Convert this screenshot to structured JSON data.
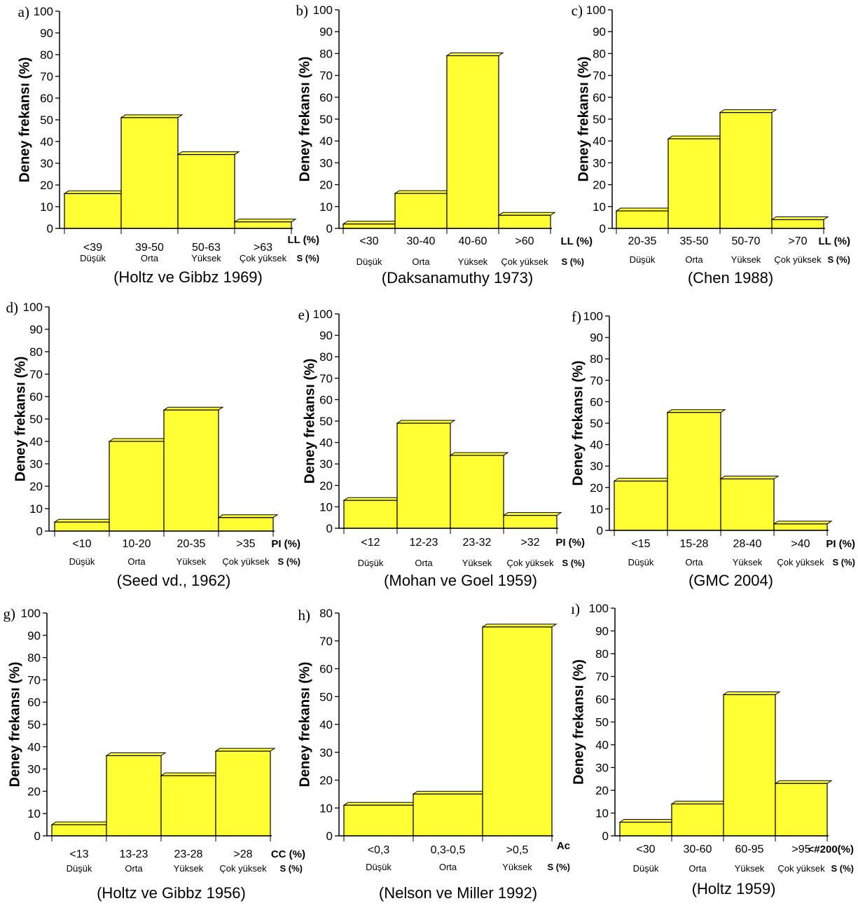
{
  "charts": [
    {
      "letter": "a)",
      "ylabel": "Deney frekansı (%)",
      "ylim": [
        0,
        100
      ],
      "yticks": [
        0,
        10,
        20,
        30,
        40,
        50,
        60,
        70,
        80,
        90,
        100
      ],
      "categories": [
        "<39",
        "39-50",
        "50-63",
        ">63"
      ],
      "classes": [
        "Düşük",
        "Orta",
        "Yüksek",
        "Çok yüksek"
      ],
      "values": [
        16,
        51,
        34,
        3
      ],
      "unit_cat": "LL (%)",
      "unit_cls": "S (%)",
      "source": "(Holtz ve Gibbz 1969)",
      "color": "#ffff33"
    },
    {
      "letter": "b)",
      "ylabel": "Deney frekansı (%)",
      "ylim": [
        0,
        100
      ],
      "yticks": [
        0,
        10,
        20,
        30,
        40,
        50,
        60,
        70,
        80,
        90,
        100
      ],
      "categories": [
        "<30",
        "30-40",
        "40-60",
        ">60"
      ],
      "classes": [
        "Düşük",
        "Orta",
        "Yüksek",
        "Çok yüksek"
      ],
      "values": [
        2,
        16,
        79,
        6
      ],
      "unit_cat": "LL (%)",
      "unit_cls": "S (%)",
      "source": "(Daksanamuthy 1973)",
      "color": "#ffff33"
    },
    {
      "letter": "c)",
      "ylabel": "Deney frekansı (%)",
      "ylim": [
        0,
        100
      ],
      "yticks": [
        0,
        10,
        20,
        30,
        40,
        50,
        60,
        70,
        80,
        90,
        100
      ],
      "categories": [
        "20-35",
        "35-50",
        "50-70",
        ">70"
      ],
      "classes": [
        "Düşük",
        "Orta",
        "Yüksek",
        "Çok yüksek"
      ],
      "values": [
        8,
        41,
        53,
        4
      ],
      "unit_cat": "LL (%)",
      "unit_cls": "S (%)",
      "source": "(Chen 1988)",
      "color": "#ffff33"
    },
    {
      "letter": "d)",
      "ylabel": "Deney frekansı (%)",
      "ylim": [
        0,
        100
      ],
      "yticks": [
        0,
        10,
        20,
        30,
        40,
        50,
        60,
        70,
        80,
        90,
        100
      ],
      "categories": [
        "<10",
        "10-20",
        "20-35",
        ">35"
      ],
      "classes": [
        "Düşük",
        "Orta",
        "Yüksek",
        "Çok yüksek"
      ],
      "values": [
        4,
        40,
        54,
        6
      ],
      "unit_cat": "PI (%)",
      "unit_cls": "S (%)",
      "source": "(Seed vd., 1962)",
      "color": "#ffff33"
    },
    {
      "letter": "e)",
      "ylabel": "Deney frekansı (%)",
      "ylim": [
        0,
        100
      ],
      "yticks": [
        0,
        10,
        20,
        30,
        40,
        50,
        60,
        70,
        80,
        90,
        100
      ],
      "categories": [
        "<12",
        "12-23",
        "23-32",
        ">32"
      ],
      "classes": [
        "Düşük",
        "Orta",
        "Yüksek",
        "Çok yüksek"
      ],
      "values": [
        13,
        49,
        34,
        6
      ],
      "unit_cat": "PI (%)",
      "unit_cls": "S (%)",
      "source": "(Mohan ve  Goel 1959)",
      "color": "#ffff33"
    },
    {
      "letter": "f)",
      "ylabel": "Deney frekansı (%)",
      "ylim": [
        0,
        100
      ],
      "yticks": [
        0,
        10,
        20,
        30,
        40,
        50,
        60,
        70,
        80,
        90,
        100
      ],
      "categories": [
        "<15",
        "15-28",
        "28-40",
        ">40"
      ],
      "classes": [
        "Düşük",
        "Orta",
        "Yüksek",
        "Çok yüksek"
      ],
      "values": [
        23,
        55,
        24,
        3
      ],
      "unit_cat": "PI (%)",
      "unit_cls": "S (%)",
      "source": "(GMC 2004)",
      "color": "#ffff33"
    },
    {
      "letter": "g)",
      "ylabel": "Deney frekansı (%)",
      "ylim": [
        0,
        100
      ],
      "yticks": [
        0,
        10,
        20,
        30,
        40,
        50,
        60,
        70,
        80,
        90,
        100
      ],
      "categories": [
        "<13",
        "13-23",
        "23-28",
        ">28"
      ],
      "classes": [
        "Düşük",
        "Orta",
        "Yüksek",
        "Çok yüksek"
      ],
      "values": [
        5,
        36,
        27,
        38
      ],
      "unit_cat": "CC (%)",
      "unit_cls": "S (%)",
      "source": "(Holtz ve Gibbz 1956)",
      "color": "#ffff33"
    },
    {
      "letter": "h)",
      "ylabel": "Deney frekansı (%)",
      "ylim": [
        0,
        80
      ],
      "yticks": [
        0,
        10,
        20,
        30,
        40,
        50,
        60,
        70,
        80
      ],
      "categories": [
        "<0,3",
        "0,3-0,5",
        ">0,5"
      ],
      "classes": [
        "Düşük",
        "Orta",
        "Yüksek"
      ],
      "values": [
        11,
        15,
        75
      ],
      "unit_cat": "Ac",
      "unit_cls": "S (%)",
      "source": "(Nelson ve Miller 1992)",
      "color": "#ffff33"
    },
    {
      "letter": "ı)",
      "ylabel": "Deney frekansı (%)",
      "ylim": [
        0,
        100
      ],
      "yticks": [
        0,
        10,
        20,
        30,
        40,
        50,
        60,
        70,
        80,
        90,
        100
      ],
      "categories": [
        "<30",
        "30-60",
        "60-95",
        ">95"
      ],
      "classes": [
        "Düşük",
        "Orta",
        "Yüksek",
        "Çok yüksek"
      ],
      "values": [
        6,
        14,
        62,
        23
      ],
      "unit_cat": "<#200(%)",
      "unit_cls": "S (%)",
      "source": "(Holtz 1959)",
      "color": "#ffff33"
    }
  ],
  "chart_data": [
    {
      "type": "bar",
      "categories": [
        "<39",
        "39-50",
        "50-63",
        ">63"
      ],
      "values": [
        16,
        51,
        34,
        3
      ],
      "ylabel": "Deney frekansı (%)",
      "xlabel": "LL (%)",
      "ylim": [
        0,
        100
      ]
    },
    {
      "type": "bar",
      "categories": [
        "<30",
        "30-40",
        "40-60",
        ">60"
      ],
      "values": [
        2,
        16,
        79,
        6
      ],
      "ylabel": "Deney frekansı (%)",
      "xlabel": "LL (%)",
      "ylim": [
        0,
        100
      ]
    },
    {
      "type": "bar",
      "categories": [
        "20-35",
        "35-50",
        "50-70",
        ">70"
      ],
      "values": [
        8,
        41,
        53,
        4
      ],
      "ylabel": "Deney frekansı (%)",
      "xlabel": "LL (%)",
      "ylim": [
        0,
        100
      ]
    },
    {
      "type": "bar",
      "categories": [
        "<10",
        "10-20",
        "20-35",
        ">35"
      ],
      "values": [
        4,
        40,
        54,
        6
      ],
      "ylabel": "Deney frekansı (%)",
      "xlabel": "PI (%)",
      "ylim": [
        0,
        100
      ]
    },
    {
      "type": "bar",
      "categories": [
        "<12",
        "12-23",
        "23-32",
        ">32"
      ],
      "values": [
        13,
        49,
        34,
        6
      ],
      "ylabel": "Deney frekansı (%)",
      "xlabel": "PI (%)",
      "ylim": [
        0,
        100
      ]
    },
    {
      "type": "bar",
      "categories": [
        "<15",
        "15-28",
        "28-40",
        ">40"
      ],
      "values": [
        23,
        55,
        24,
        3
      ],
      "ylabel": "Deney frekansı (%)",
      "xlabel": "PI (%)",
      "ylim": [
        0,
        100
      ]
    },
    {
      "type": "bar",
      "categories": [
        "<13",
        "13-23",
        "23-28",
        ">28"
      ],
      "values": [
        5,
        36,
        27,
        38
      ],
      "ylabel": "Deney frekansı (%)",
      "xlabel": "CC (%)",
      "ylim": [
        0,
        100
      ]
    },
    {
      "type": "bar",
      "categories": [
        "<0,3",
        "0,3-0,5",
        ">0,5"
      ],
      "values": [
        11,
        15,
        75
      ],
      "ylabel": "Deney frekansı (%)",
      "xlabel": "Ac",
      "ylim": [
        0,
        80
      ]
    },
    {
      "type": "bar",
      "categories": [
        "<30",
        "30-60",
        "60-95",
        ">95"
      ],
      "values": [
        6,
        14,
        62,
        23
      ],
      "ylabel": "Deney frekansı (%)",
      "xlabel": "<#200(%)",
      "ylim": [
        0,
        100
      ]
    }
  ]
}
